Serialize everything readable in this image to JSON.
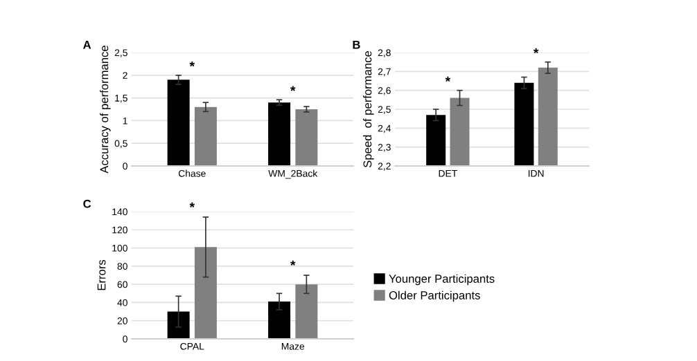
{
  "chart_data": [
    {
      "type": "bar",
      "title": "A",
      "ylabel": "Accuracy of performance",
      "categories": [
        "Chase",
        "WM_2Back"
      ],
      "series": [
        {
          "color": "#000000",
          "values": [
            1.9,
            1.4
          ],
          "errors": [
            0.1,
            0.06
          ]
        },
        {
          "color": "#808080",
          "values": [
            1.3,
            1.25
          ],
          "errors": [
            0.1,
            0.06
          ]
        }
      ],
      "ylim": [
        0,
        2.5
      ],
      "yticks": [
        0,
        {
          "value": 0.5,
          "label": "0,5"
        },
        1,
        {
          "value": 1.5,
          "label": "1,5"
        },
        2,
        {
          "value": 2.5,
          "label": "2,5"
        }
      ],
      "grid": "y",
      "annotations": [
        "*",
        "*"
      ]
    },
    {
      "type": "bar",
      "title": "B",
      "ylabel": "Speed  of performance",
      "categories": [
        "DET",
        "IDN"
      ],
      "series": [
        {
          "color": "#000000",
          "values": [
            2.47,
            2.64
          ],
          "errors": [
            0.03,
            0.03
          ]
        },
        {
          "color": "#808080",
          "values": [
            2.56,
            2.72
          ],
          "errors": [
            0.04,
            0.03
          ]
        }
      ],
      "ylim": [
        2.2,
        2.8
      ],
      "yticks": [
        {
          "value": 2.2,
          "label": "2,2"
        },
        {
          "value": 2.3,
          "label": "2,3"
        },
        {
          "value": 2.4,
          "label": "2,4"
        },
        {
          "value": 2.5,
          "label": "2,5"
        },
        {
          "value": 2.6,
          "label": "2,6"
        },
        {
          "value": 2.7,
          "label": "2,7"
        },
        {
          "value": 2.8,
          "label": "2,8"
        }
      ],
      "grid": "y",
      "annotations": [
        "*",
        "*"
      ]
    },
    {
      "type": "bar",
      "title": "C",
      "ylabel": "Errors",
      "categories": [
        "CPAL",
        "Maze"
      ],
      "series": [
        {
          "name": "Younger Participants",
          "color": "#000000",
          "values": [
            30,
            41
          ],
          "errors": [
            17,
            9
          ]
        },
        {
          "name": "Older Participants",
          "color": "#808080",
          "values": [
            101,
            60
          ],
          "errors": [
            33,
            10
          ]
        }
      ],
      "ylim": [
        0,
        140
      ],
      "yticks": [
        0,
        20,
        40,
        60,
        80,
        100,
        120,
        140
      ],
      "grid": "y",
      "legend": "right",
      "annotations": [
        "*",
        "*"
      ]
    }
  ]
}
